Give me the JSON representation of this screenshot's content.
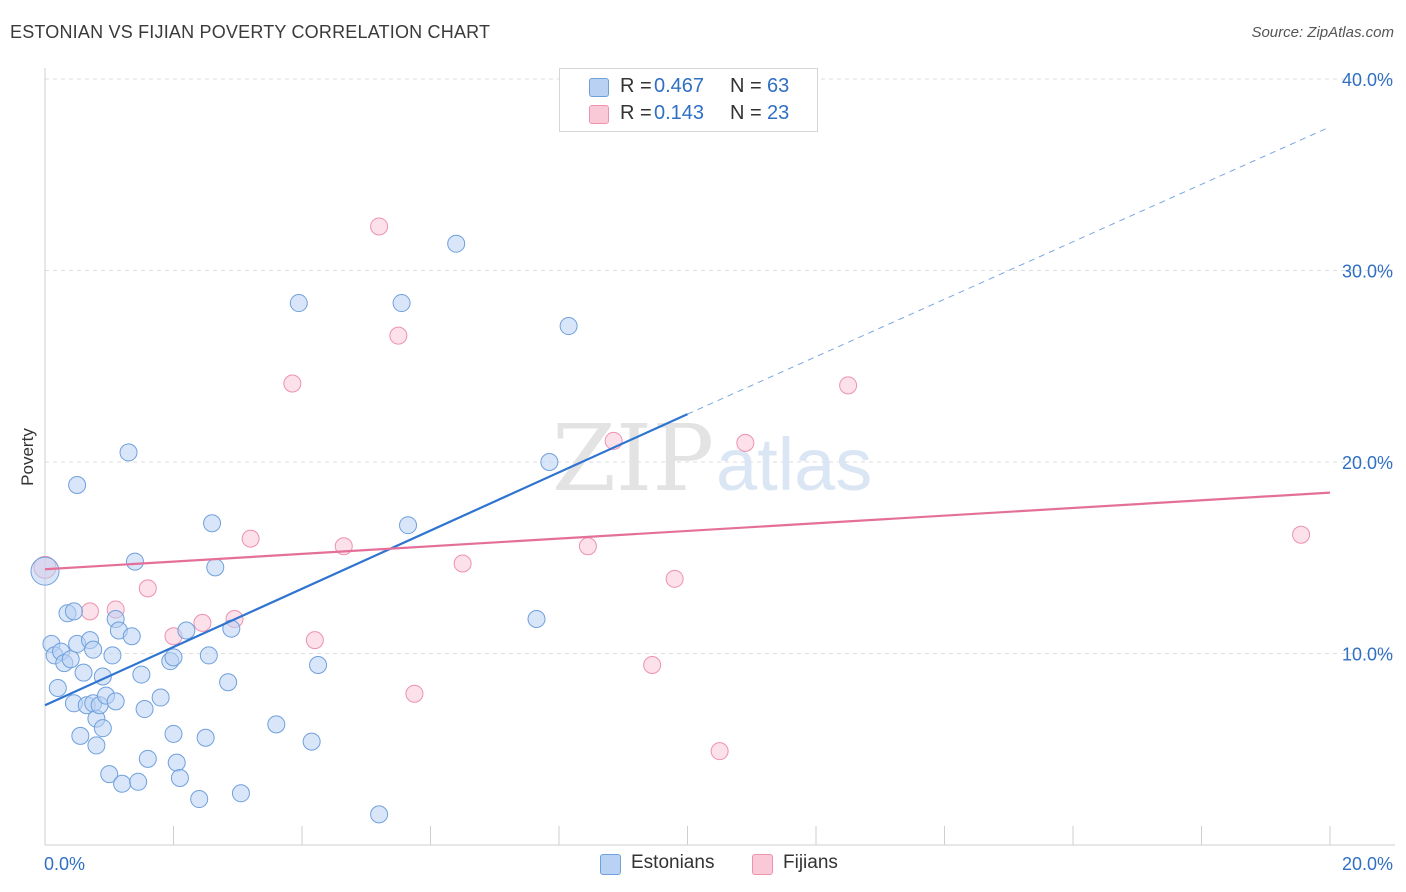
{
  "title": "ESTONIAN VS FIJIAN POVERTY CORRELATION CHART",
  "source": "Source: ZipAtlas.com",
  "colors": {
    "estonian_fill": "#b9d2f4",
    "estonian_stroke": "#6fa0dc",
    "estonian_line": "#2f74d0",
    "fijian_fill": "#f9c9d8",
    "fijian_stroke": "#ee92ae",
    "fijian_line": "#e4709a",
    "axis_text": "#2f6fc4",
    "grid": "#dddddd"
  },
  "legend": {
    "rows": [
      {
        "r_label": "R =",
        "r_value": "0.467",
        "n_label": "N =",
        "n_value": "63"
      },
      {
        "r_label": "R =",
        "r_value": "0.143",
        "n_label": "N =",
        "n_value": "23"
      }
    ]
  },
  "bottom_legend": {
    "estonians": "Estonians",
    "fijians": "Fijians"
  },
  "watermark": {
    "zip": "ZIP",
    "atlas": "atlas"
  },
  "chart_data": {
    "type": "scatter",
    "xlabel": "",
    "ylabel": "Poverty",
    "xlim": [
      0,
      20
    ],
    "ylim": [
      0,
      40
    ],
    "y_ticks": [
      10,
      20,
      30,
      40
    ],
    "y_tick_labels": [
      "10.0%",
      "20.0%",
      "30.0%",
      "40.0%"
    ],
    "x_tick_labels": [
      "0.0%",
      "20.0%"
    ],
    "grid": true,
    "series": [
      {
        "name": "Estonians",
        "r": 0.467,
        "n": 63,
        "trend": {
          "x0": 0,
          "y0": 7.3,
          "x1": 10,
          "y1": 22.5,
          "extended_to_x": 20,
          "extended_y": 37.5
        },
        "points": [
          [
            0.0,
            14.3
          ],
          [
            0.1,
            10.5
          ],
          [
            0.15,
            9.9
          ],
          [
            0.2,
            8.2
          ],
          [
            0.25,
            10.1
          ],
          [
            0.3,
            9.5
          ],
          [
            0.35,
            12.1
          ],
          [
            0.4,
            9.7
          ],
          [
            0.45,
            12.2
          ],
          [
            0.5,
            10.5
          ],
          [
            0.45,
            7.4
          ],
          [
            0.5,
            18.8
          ],
          [
            0.55,
            5.7
          ],
          [
            0.6,
            9.0
          ],
          [
            0.65,
            7.3
          ],
          [
            0.7,
            10.7
          ],
          [
            0.75,
            10.2
          ],
          [
            0.75,
            7.4
          ],
          [
            0.8,
            6.6
          ],
          [
            0.8,
            5.2
          ],
          [
            0.85,
            7.3
          ],
          [
            0.9,
            8.8
          ],
          [
            0.9,
            6.1
          ],
          [
            0.95,
            7.8
          ],
          [
            1.0,
            3.7
          ],
          [
            1.05,
            9.9
          ],
          [
            1.1,
            11.8
          ],
          [
            1.1,
            7.5
          ],
          [
            1.15,
            11.2
          ],
          [
            1.2,
            3.2
          ],
          [
            1.3,
            20.5
          ],
          [
            1.35,
            10.9
          ],
          [
            1.4,
            14.8
          ],
          [
            1.45,
            3.3
          ],
          [
            1.5,
            8.9
          ],
          [
            1.55,
            7.1
          ],
          [
            1.6,
            4.5
          ],
          [
            1.8,
            7.7
          ],
          [
            1.95,
            9.6
          ],
          [
            2.0,
            9.8
          ],
          [
            2.0,
            5.8
          ],
          [
            2.05,
            4.3
          ],
          [
            2.1,
            3.5
          ],
          [
            2.2,
            11.2
          ],
          [
            2.4,
            2.4
          ],
          [
            2.5,
            5.6
          ],
          [
            2.55,
            9.9
          ],
          [
            2.6,
            16.8
          ],
          [
            2.65,
            14.5
          ],
          [
            2.85,
            8.5
          ],
          [
            2.9,
            11.3
          ],
          [
            3.05,
            2.7
          ],
          [
            3.6,
            6.3
          ],
          [
            3.95,
            28.3
          ],
          [
            4.15,
            5.4
          ],
          [
            4.25,
            9.4
          ],
          [
            5.2,
            1.6
          ],
          [
            5.55,
            28.3
          ],
          [
            5.65,
            16.7
          ],
          [
            6.4,
            31.4
          ],
          [
            7.65,
            11.8
          ],
          [
            7.85,
            20.0
          ],
          [
            8.15,
            27.1
          ]
        ]
      },
      {
        "name": "Fijians",
        "r": 0.143,
        "n": 23,
        "trend": {
          "x0": 0,
          "y0": 14.4,
          "x1": 20,
          "y1": 18.4
        },
        "points": [
          [
            0.0,
            14.5
          ],
          [
            0.7,
            12.2
          ],
          [
            1.1,
            12.3
          ],
          [
            1.6,
            13.4
          ],
          [
            2.0,
            10.9
          ],
          [
            2.45,
            11.6
          ],
          [
            2.95,
            11.8
          ],
          [
            3.2,
            16.0
          ],
          [
            3.85,
            24.1
          ],
          [
            4.2,
            10.7
          ],
          [
            4.65,
            15.6
          ],
          [
            5.2,
            32.3
          ],
          [
            5.5,
            26.6
          ],
          [
            5.75,
            7.9
          ],
          [
            6.5,
            14.7
          ],
          [
            8.45,
            15.6
          ],
          [
            8.85,
            21.1
          ],
          [
            9.45,
            9.4
          ],
          [
            9.8,
            13.9
          ],
          [
            10.5,
            4.9
          ],
          [
            10.9,
            21.0
          ],
          [
            12.5,
            24.0
          ],
          [
            19.55,
            16.2
          ]
        ]
      }
    ]
  }
}
